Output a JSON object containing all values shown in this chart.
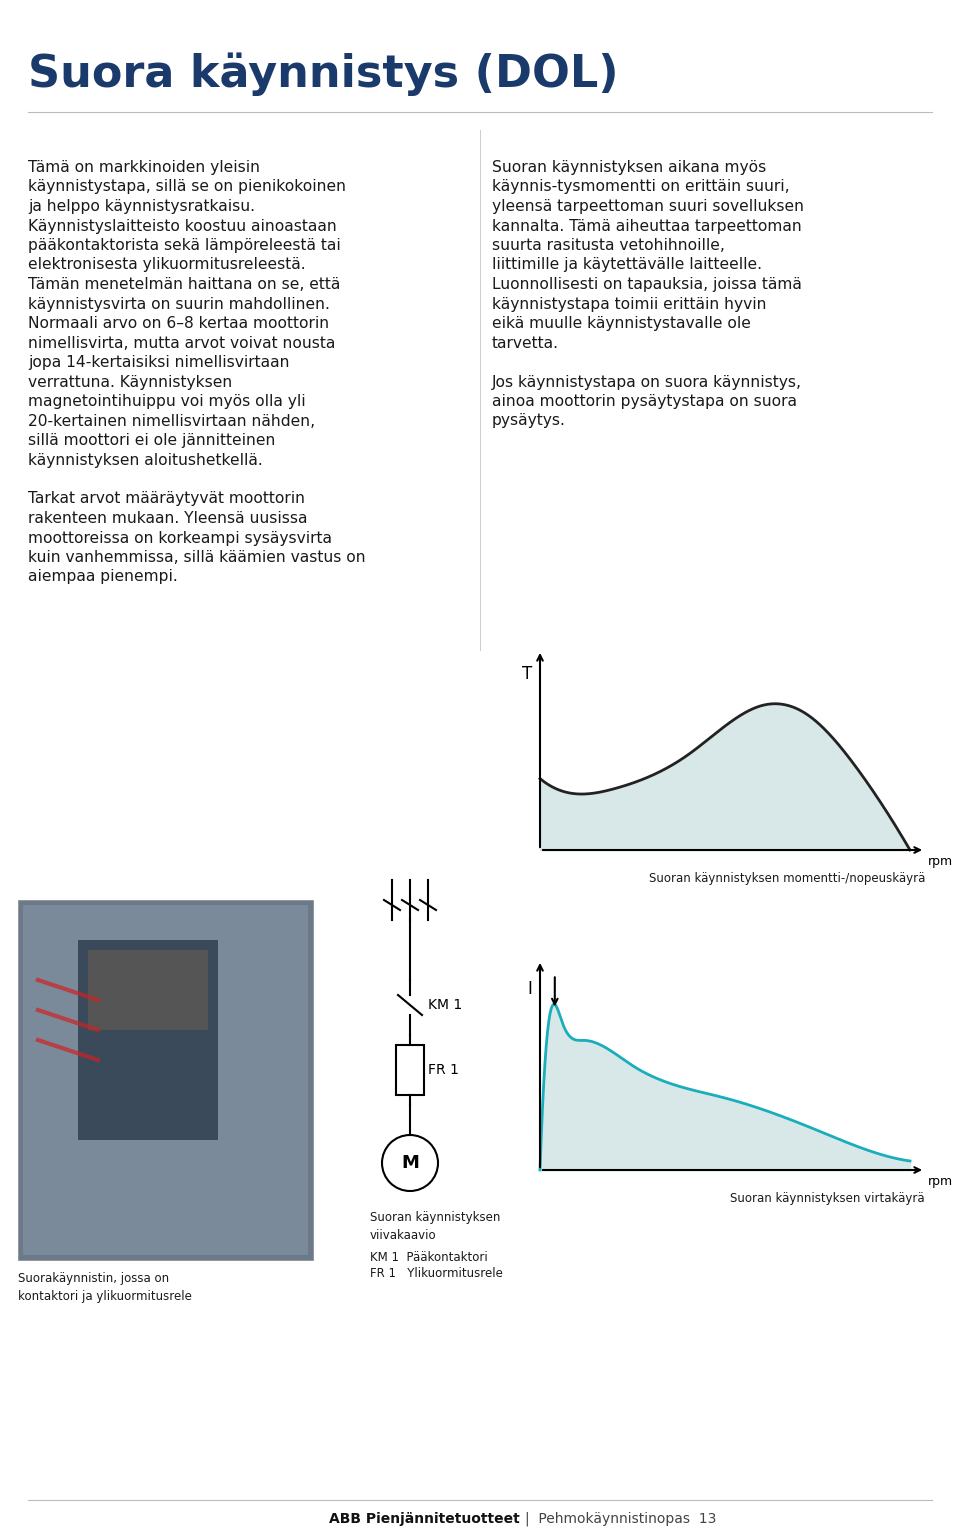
{
  "title": "Suora käynnistys (DOL)",
  "title_color": "#1a3a6b",
  "title_fontsize": 30,
  "bg_color": "#ffffff",
  "text_color": "#1a1a1a",
  "col1_block": "Tämä on markkinoiden yleisin käynnistystapa, sillä se on pienikokoinen ja helppo käynnistysratkaisu. Käynnistyslaitteisto koostuu ainoastaan pääkontaktorista sekä lämpöreleestä tai elektronisesta ylikuormitusreleestä. Tämän menetelmän haittana on se, että käynnistysvirta on suurin mahdollinen. Normaali arvo on 6–8 kertaa moottorin nimellisvirta, mutta arvot voivat nousta jopa 14-kertaisiksi nimellisvirtaan verrattuna. Käynnistyksen magnetointihuippu voi myös olla yli 20-kertainen nimellisvirtaan nähden, sillä moottori ei ole jännitteinen käynnistyksen aloitushetkellä.\nTarkat arvot määräytyvät moottorin rakenteen mukaan. Yleensä uusissa moottoreissa on korkeampi sysäysvirta kuin vanhemmissa, sillä käämien vastus on aiempaa pienempi.",
  "col2_block": "Suoran käynnistyksen aikana myös käynnis­tysmomentti on erittäin suuri, yleensä tarpeettoman suuri sovelluksen kannalta. Tämä aiheuttaa tarpeettoman suurta rasitusta vetohihnoille, liittimille ja käytettävälle laitteelle. Luonnollisesti on tapauksia, joissa tämä käynnistystapa toimii erittäin hyvin eikä muulle käynnistystavalle ole tarvetta.\nJos käynnistystapa on suora käynnistys, ainoa moottorin pysäytystapa on suora pysäytys.",
  "caption_torque": "Suoran käynnistyksen momentti-/nopeuskäyrä",
  "caption_current": "Suoran käynnistyksen virtakäyrä",
  "caption_photo": "Suorakäynnistin, jossa on\nkontaktori ja ylikuormitusrele",
  "caption_circuit": "Suoran käynnistyksen\nviivakaavio",
  "caption_km": "KM 1  Pääkontaktori",
  "caption_fr": "FR 1   Ylikuormitusrele",
  "label_T": "T",
  "label_I": "I",
  "label_rpm": "rpm",
  "label_KM1": "KM 1",
  "label_FR1": "FR 1",
  "footer_bold": "ABB Pienjännitetuotteet",
  "footer_light": "Pehmokäynnistinopas  13",
  "chart_teal": "#1aadbc",
  "chart_fill_torque": "#d8e8e8",
  "chart_fill_current": "#d8e8e8",
  "torque_curve_color": "#222222",
  "current_spike_color": "#1aadbc"
}
